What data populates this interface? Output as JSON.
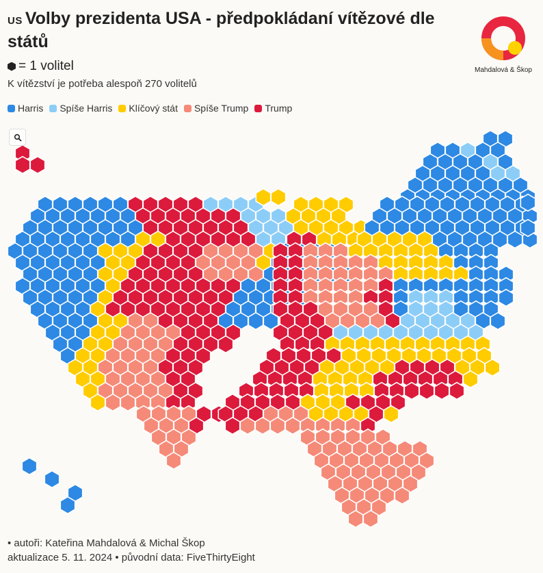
{
  "header": {
    "flag": "US",
    "title": "Volby prezidenta USA - předpokládaní vítězové dle států",
    "unit_text": "= 1 volitel",
    "subtitle": "K vítězství je potřeba alespoň 270 volitelů"
  },
  "logo": {
    "text": "Mahdalová & Škop"
  },
  "legend": [
    {
      "label": "Harris",
      "color": "#2d89e3"
    },
    {
      "label": "Spíše Harris",
      "color": "#8ccdf7"
    },
    {
      "label": "Klíčový stát",
      "color": "#ffcc00"
    },
    {
      "label": "Spíše Trump",
      "color": "#f58a78"
    },
    {
      "label": "Trump",
      "color": "#dc1a3c"
    }
  ],
  "zoom_button": {
    "icon": "magnifier-icon"
  },
  "footer": {
    "authors": "• autoři: Kateřina Mahdalová & Michal Škop",
    "update": "aktualizace 5. 11. 2024 • původní data: FiveThirtyEight"
  }
}
